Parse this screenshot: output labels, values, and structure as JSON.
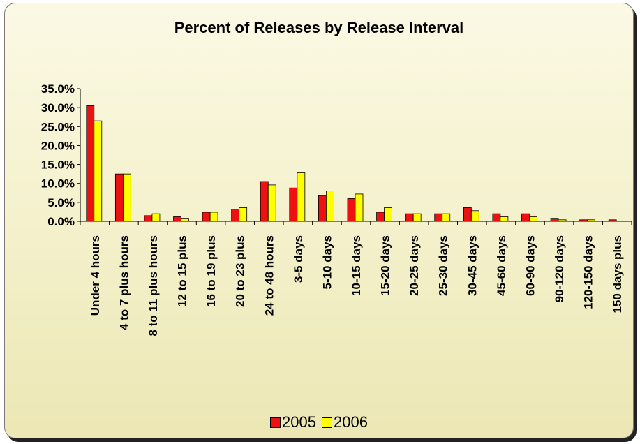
{
  "chart_data": {
    "type": "bar",
    "title": "Percent of Releases by Release Interval",
    "categories": [
      "Under 4 hours",
      "4 to 7 plus hours",
      "8 to 11 plus hours",
      "12 to 15 plus",
      "16 to 19 plus",
      "20 to 23 plus",
      "24 to 48 hours",
      "3-5 days",
      "5-10 days",
      "10-15 days",
      "15-20 days",
      "20-25 days",
      "25-30 days",
      "30-45 days",
      "45-60 days",
      "60-90 days",
      "90-120 days",
      "120-150 days",
      "150 days plus"
    ],
    "series": [
      {
        "name": "2005",
        "color": "#ee1111",
        "values": [
          30.5,
          12.5,
          1.5,
          1.2,
          2.4,
          3.2,
          10.5,
          8.8,
          6.8,
          6.0,
          2.4,
          2.0,
          2.0,
          3.6,
          2.0,
          2.0,
          0.8,
          0.4,
          0.4
        ]
      },
      {
        "name": "2006",
        "color": "#ffff00",
        "values": [
          26.5,
          12.5,
          2.0,
          0.8,
          2.4,
          3.6,
          9.6,
          12.8,
          8.0,
          7.2,
          3.6,
          2.0,
          2.0,
          2.8,
          1.2,
          1.2,
          0.4,
          0.4,
          0.0
        ]
      }
    ],
    "yticks": [
      "35.0%",
      "30.0%",
      "25.0%",
      "20.0%",
      "15.0%",
      "10.0%",
      "5.0%",
      "0.0%"
    ],
    "ylim": [
      0,
      35
    ],
    "xlabel": "",
    "ylabel": "",
    "grid": false,
    "legend_position": "bottom"
  }
}
